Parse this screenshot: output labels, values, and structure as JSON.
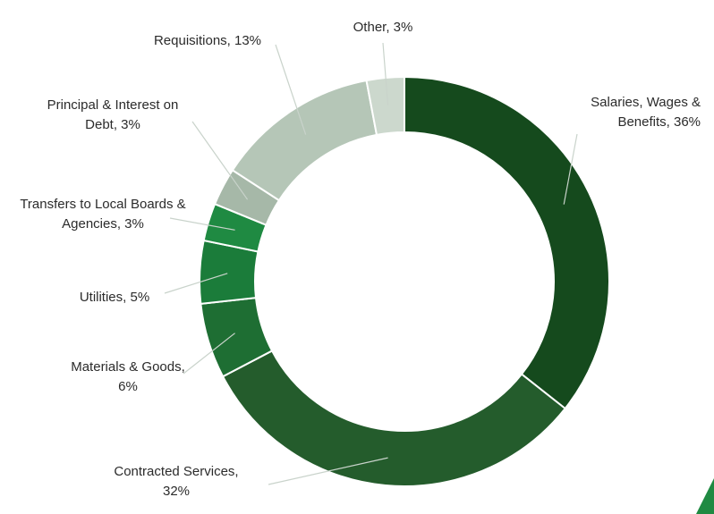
{
  "chart_data": {
    "type": "pie",
    "variant": "donut",
    "title": "",
    "legend": "none",
    "slices": [
      {
        "name": "Salaries, Wages & Benefits",
        "value": 36,
        "label_lines": [
          "Salaries, Wages &",
          "Benefits, 36%"
        ],
        "color": "#154a1d"
      },
      {
        "name": "Contracted Services",
        "value": 32,
        "label_lines": [
          "Contracted Services,",
          "32%"
        ],
        "color": "#245c2c"
      },
      {
        "name": "Materials & Goods",
        "value": 6,
        "label_lines": [
          "Materials & Goods,",
          "6%"
        ],
        "color": "#1e6e33"
      },
      {
        "name": "Utilities",
        "value": 5,
        "label_lines": [
          "Utilities, 5%"
        ],
        "color": "#1b7c3a"
      },
      {
        "name": "Transfers to Local Boards & Agencies",
        "value": 3,
        "label_lines": [
          "Transfers to Local Boards &",
          "Agencies, 3%"
        ],
        "color": "#1f8a42"
      },
      {
        "name": "Principal & Interest on Debt",
        "value": 3,
        "label_lines": [
          "Principal & Interest on",
          "Debt, 3%"
        ],
        "color": "#a6b8a8"
      },
      {
        "name": "Requisitions",
        "value": 13,
        "label_lines": [
          "Requisitions, 13%"
        ],
        "color": "#b5c6b7"
      },
      {
        "name": "Other",
        "value": 3,
        "label_lines": [
          "Other, 3%"
        ],
        "color": "#ccd8cd"
      }
    ]
  },
  "colors": {
    "accent": "#1f8a42",
    "leader": "#c9d3cb",
    "text": "#2b2b2b"
  }
}
